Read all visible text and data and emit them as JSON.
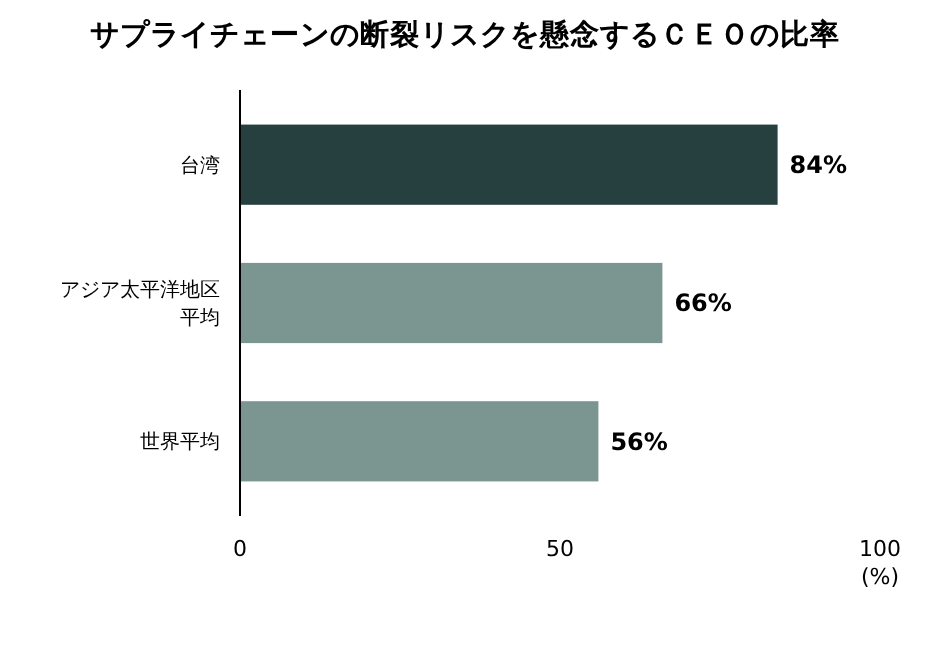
{
  "chart_data": {
    "type": "bar",
    "orientation": "horizontal",
    "title": "サプライチェーンの断裂リスクを懸念するＣＥＯの比率",
    "categories": [
      "台湾",
      "アジア太平洋地区平均",
      "世界平均"
    ],
    "values": [
      84,
      66,
      56
    ],
    "colors": [
      "#263f3f",
      "#7b9591",
      "#7b9591"
    ],
    "value_labels": [
      "84%",
      "66%",
      "56%"
    ],
    "xlim": [
      0,
      100
    ],
    "xticks": [
      0,
      50,
      100
    ],
    "xlabel": "(%)",
    "grid": false
  }
}
